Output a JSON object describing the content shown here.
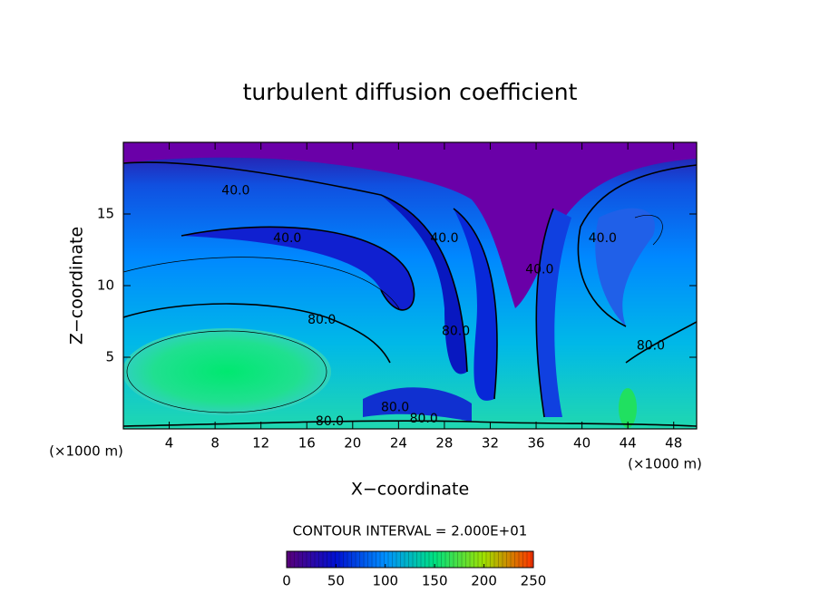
{
  "chart_data": {
    "type": "contour",
    "title": "turbulent diffusion coefficient",
    "xlabel": "X−coordinate",
    "ylabel": "Z−coordinate",
    "xunit": "(×1000 m)",
    "xlim": [
      0,
      50
    ],
    "ylim": [
      0,
      20
    ],
    "xticks": [
      4,
      8,
      12,
      16,
      20,
      24,
      28,
      32,
      36,
      40,
      44,
      48
    ],
    "yticks": [
      5,
      10,
      15
    ],
    "annotation": "CONTOUR INTERVAL = 2.000E+01",
    "contour_labels": [
      {
        "value": 40,
        "label": "40.0",
        "x": 9.8,
        "y": 16.6
      },
      {
        "value": 40,
        "label": "40.0",
        "x": 14.3,
        "y": 13.3
      },
      {
        "value": 40,
        "label": "40.0",
        "x": 28,
        "y": 13.3
      },
      {
        "value": 40,
        "label": "40.0",
        "x": 36.3,
        "y": 11.1
      },
      {
        "value": 40,
        "label": "40.0",
        "x": 41.8,
        "y": 13.3
      },
      {
        "value": 80,
        "label": "80.0",
        "x": 17.3,
        "y": 7.6
      },
      {
        "value": 80,
        "label": "80.0",
        "x": 29,
        "y": 6.8
      },
      {
        "value": 80,
        "label": "80.0",
        "x": 46,
        "y": 5.8
      },
      {
        "value": 80,
        "label": "80.0",
        "x": 23.7,
        "y": 1.5
      },
      {
        "value": 80,
        "label": "80.0",
        "x": 18,
        "y": 0.5
      },
      {
        "value": 80,
        "label": "80.0",
        "x": 26.2,
        "y": 0.7
      }
    ],
    "colorbar": {
      "lim": [
        0,
        250
      ],
      "ticks": [
        0,
        50,
        100,
        150,
        200,
        250
      ],
      "colors": [
        "#5a007a",
        "#0010d0",
        "#0090ff",
        "#00e080",
        "#a0e000",
        "#ff3000"
      ]
    }
  }
}
